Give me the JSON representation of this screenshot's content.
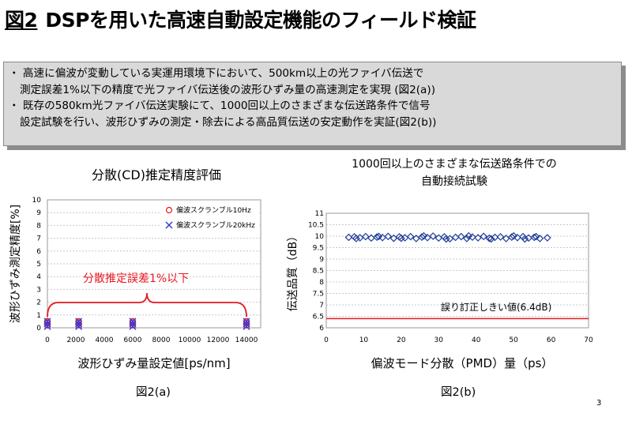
{
  "slide": {
    "title_prefix": "図2",
    "title": "DSPを用いた高速自動設定機能のフィールド検証",
    "page_number": "3"
  },
  "summary": {
    "bullet1_line1": "・ 高速に偏波が変動している実運用環境下において、500km以上の光ファイバ伝送で",
    "bullet1_line2": "測定誤差1%以下の精度で光ファイバ伝送後の波形ひずみ量の高速測定を実現 (図2(a))",
    "bullet2_line1": "・ 既存の580km光ファイバ伝送実験にて、1000回以上のさまざまな伝送路条件で信号",
    "bullet2_line2": "設定試験を行い、波形ひずみの測定・除去による高品質伝送の安定動作を実証(図2(b))"
  },
  "chart_data": [
    {
      "type": "scatter",
      "title": "分散(CD)推定精度評価",
      "xlabel": "波形ひずみ量設定値[ps/nm]",
      "ylabel": "波形ひずみ測定精度[%]",
      "caption": "図2(a)",
      "annotation": "分散推定誤差1%以下",
      "xlim": [
        0,
        15000
      ],
      "ylim": [
        0,
        10
      ],
      "x_ticks": [
        "0",
        "2000",
        "4000",
        "6000",
        "8000",
        "10000",
        "12000",
        "14000"
      ],
      "y_ticks": [
        "0",
        "1",
        "2",
        "3",
        "4",
        "5",
        "6",
        "7",
        "8",
        "9",
        "10"
      ],
      "grid": true,
      "legend_position": "top-right",
      "series": [
        {
          "name": "偏波スクランブル10Hz",
          "marker": "circle",
          "color": "#e8171f",
          "points": [
            [
              0,
              0.2
            ],
            [
              0,
              0.4
            ],
            [
              0,
              0.5
            ],
            [
              2200,
              0.2
            ],
            [
              2200,
              0.4
            ],
            [
              2200,
              0.5
            ],
            [
              6000,
              0.2
            ],
            [
              6000,
              0.4
            ],
            [
              6000,
              0.5
            ],
            [
              14000,
              0.2
            ],
            [
              14000,
              0.4
            ],
            [
              14000,
              0.5
            ]
          ]
        },
        {
          "name": "偏波スクランブル20kHz",
          "marker": "x",
          "color": "#3b3bd6",
          "points": [
            [
              0,
              0.1
            ],
            [
              0,
              0.3
            ],
            [
              0,
              0.5
            ],
            [
              2200,
              0.1
            ],
            [
              2200,
              0.3
            ],
            [
              2200,
              0.5
            ],
            [
              6000,
              0.1
            ],
            [
              6000,
              0.3
            ],
            [
              6000,
              0.5
            ],
            [
              14000,
              0.1
            ],
            [
              14000,
              0.3
            ],
            [
              14000,
              0.5
            ]
          ]
        }
      ]
    },
    {
      "type": "scatter",
      "title_line1": "1000回以上のさまざまな伝送路条件での",
      "title_line2": "自動接続試験",
      "xlabel": "偏波モード分散（PMD）量（ps）",
      "ylabel": "伝送品質（dB）",
      "caption": "図2(b)",
      "annotation": "誤り訂正しきい値(6.4dB)",
      "threshold": 6.4,
      "threshold_color": "#e8171f",
      "xlim": [
        0,
        70
      ],
      "ylim": [
        6,
        11
      ],
      "x_ticks": [
        "0",
        "10",
        "20",
        "30",
        "40",
        "50",
        "60",
        "70"
      ],
      "y_ticks": [
        "6",
        "6.5",
        "7",
        "7.5",
        "8",
        "8.5",
        "9",
        "9.5",
        "10",
        "10.5",
        "11"
      ],
      "grid": true,
      "series": [
        {
          "marker": "diamond",
          "color": "#1f3d99",
          "points": [
            [
              6,
              9.95
            ],
            [
              7.5,
              9.97
            ],
            [
              9,
              9.93
            ],
            [
              10.5,
              9.98
            ],
            [
              12,
              9.92
            ],
            [
              13.5,
              9.96
            ],
            [
              15,
              9.94
            ],
            [
              16.5,
              9.99
            ],
            [
              18,
              9.91
            ],
            [
              19.5,
              9.97
            ],
            [
              21,
              9.93
            ],
            [
              22.5,
              9.98
            ],
            [
              24,
              9.9
            ],
            [
              25.5,
              9.96
            ],
            [
              27,
              9.94
            ],
            [
              28.5,
              10.0
            ],
            [
              30,
              9.92
            ],
            [
              31.5,
              9.97
            ],
            [
              33,
              9.89
            ],
            [
              34.5,
              9.95
            ],
            [
              36,
              9.98
            ],
            [
              37.5,
              9.9
            ],
            [
              39,
              9.96
            ],
            [
              40.5,
              9.93
            ],
            [
              42,
              9.99
            ],
            [
              43.5,
              9.91
            ],
            [
              45,
              9.95
            ],
            [
              46.5,
              9.97
            ],
            [
              48,
              9.9
            ],
            [
              49.5,
              9.96
            ],
            [
              51,
              9.94
            ],
            [
              52.5,
              9.98
            ],
            [
              54,
              9.92
            ],
            [
              55.5,
              9.95
            ],
            [
              57,
              9.9
            ],
            [
              59,
              9.93
            ],
            [
              8,
              9.9
            ],
            [
              14,
              9.99
            ],
            [
              20,
              9.91
            ],
            [
              26,
              10.01
            ],
            [
              32,
              9.88
            ],
            [
              38,
              10.01
            ],
            [
              44,
              9.88
            ],
            [
              50,
              10.01
            ],
            [
              53,
              9.88
            ],
            [
              56,
              9.98
            ]
          ]
        }
      ]
    }
  ]
}
